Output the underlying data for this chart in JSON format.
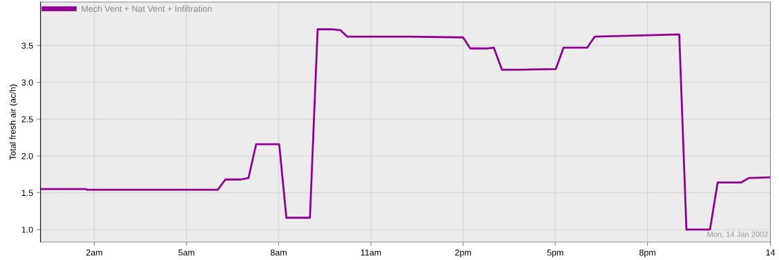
{
  "chart_data": {
    "type": "line",
    "ylabel": "Total fresh air (ac/h)",
    "x": [
      "2002-01-13T00:15",
      "2002-01-13T01:44",
      "2002-01-13T01:46",
      "2002-01-13T06:01",
      "2002-01-13T06:16",
      "2002-01-13T06:46",
      "2002-01-13T07:01",
      "2002-01-13T07:16",
      "2002-01-13T08:01",
      "2002-01-13T08:15",
      "2002-01-13T09:01",
      "2002-01-13T09:16",
      "2002-01-13T09:45",
      "2002-01-13T10:00",
      "2002-01-13T10:14",
      "2002-01-13T10:31",
      "2002-01-13T12:15",
      "2002-01-13T14:00",
      "2002-01-13T14:14",
      "2002-01-13T14:46",
      "2002-01-13T15:00",
      "2002-01-13T15:16",
      "2002-01-13T15:47",
      "2002-01-13T17:01",
      "2002-01-13T17:16",
      "2002-01-13T18:02",
      "2002-01-13T18:17",
      "2002-01-13T19:08",
      "2002-01-13T20:01",
      "2002-01-13T21:02",
      "2002-01-13T21:16",
      "2002-01-13T22:02",
      "2002-01-13T22:17",
      "2002-01-13T23:03",
      "2002-01-13T23:18",
      "2002-01-14T00:00"
    ],
    "series": [
      {
        "name": "Mech Vent + Nat Vent + Infiltration",
        "color": "#900090",
        "values": [
          1.55,
          1.55,
          1.54,
          1.54,
          1.68,
          1.68,
          1.7,
          2.16,
          2.16,
          1.16,
          1.16,
          3.72,
          3.72,
          3.71,
          3.62,
          3.62,
          3.62,
          3.61,
          3.46,
          3.46,
          3.47,
          3.17,
          3.17,
          3.18,
          3.47,
          3.47,
          3.62,
          3.63,
          3.64,
          3.65,
          1.0,
          1.0,
          1.64,
          1.64,
          1.7,
          1.71
        ]
      }
    ],
    "xlim": [
      "2002-01-13T00:15",
      "2002-01-14T00:00"
    ],
    "ylim": [
      0.83,
      4.09
    ],
    "xticks": [
      {
        "value": "2002-01-13T02:00",
        "label": "2am"
      },
      {
        "value": "2002-01-13T05:00",
        "label": "5am"
      },
      {
        "value": "2002-01-13T08:00",
        "label": "8am"
      },
      {
        "value": "2002-01-13T11:00",
        "label": "11am"
      },
      {
        "value": "2002-01-13T14:00",
        "label": "2pm"
      },
      {
        "value": "2002-01-13T17:00",
        "label": "5pm"
      },
      {
        "value": "2002-01-13T20:00",
        "label": "8pm"
      },
      {
        "value": "2002-01-14T00:00",
        "label": "14"
      }
    ],
    "yticks": [
      {
        "value": 1.0,
        "label": "1.0"
      },
      {
        "value": 1.5,
        "label": "1.5"
      },
      {
        "value": 2.0,
        "label": "2.0"
      },
      {
        "value": 2.5,
        "label": "2.5"
      },
      {
        "value": 3.0,
        "label": "3.0"
      },
      {
        "value": 3.5,
        "label": "3.5"
      }
    ],
    "annotations": [
      "Mon, 14 Jan 2002"
    ],
    "grid": true,
    "legend": "top left",
    "marker": "none",
    "line_style": "solid"
  }
}
